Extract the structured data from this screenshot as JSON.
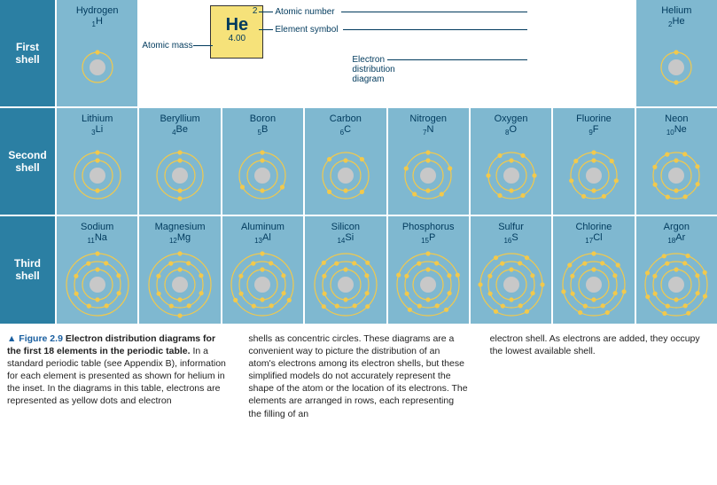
{
  "colors": {
    "rowlabel_bg": "#2b7fa3",
    "cell_bg": "#7fb8d0",
    "text": "#003a5d",
    "electron": "#f2c94c",
    "shell": "#f2c94c",
    "nucleus": "#c8c8c8",
    "legend_tile_bg": "#f6e27a"
  },
  "shell_labels": [
    "First shell",
    "Second shell",
    "Third shell"
  ],
  "legend": {
    "atomic_number": "Atomic number",
    "atomic_mass": "Atomic mass",
    "element_symbol": "Element symbol",
    "electron_diagram": "Electron distribution diagram",
    "he_num": "2",
    "he_sym": "He",
    "he_mass": "4.00"
  },
  "elements": [
    {
      "row": 1,
      "col": 1,
      "z": 1,
      "sym": "H",
      "name": "Hydrogen",
      "shells": [
        1
      ]
    },
    {
      "row": 1,
      "col": 8,
      "z": 2,
      "sym": "He",
      "name": "Helium",
      "shells": [
        2
      ]
    },
    {
      "row": 2,
      "col": 1,
      "z": 3,
      "sym": "Li",
      "name": "Lithium",
      "shells": [
        2,
        1
      ]
    },
    {
      "row": 2,
      "col": 2,
      "z": 4,
      "sym": "Be",
      "name": "Beryllium",
      "shells": [
        2,
        2
      ]
    },
    {
      "row": 2,
      "col": 3,
      "z": 5,
      "sym": "B",
      "name": "Boron",
      "shells": [
        2,
        3
      ]
    },
    {
      "row": 2,
      "col": 4,
      "z": 6,
      "sym": "C",
      "name": "Carbon",
      "shells": [
        2,
        4
      ]
    },
    {
      "row": 2,
      "col": 5,
      "z": 7,
      "sym": "N",
      "name": "Nitrogen",
      "shells": [
        2,
        5
      ]
    },
    {
      "row": 2,
      "col": 6,
      "z": 8,
      "sym": "O",
      "name": "Oxygen",
      "shells": [
        2,
        6
      ]
    },
    {
      "row": 2,
      "col": 7,
      "z": 9,
      "sym": "F",
      "name": "Fluorine",
      "shells": [
        2,
        7
      ]
    },
    {
      "row": 2,
      "col": 8,
      "z": 10,
      "sym": "Ne",
      "name": "Neon",
      "shells": [
        2,
        8
      ]
    },
    {
      "row": 3,
      "col": 1,
      "z": 11,
      "sym": "Na",
      "name": "Sodium",
      "shells": [
        2,
        8,
        1
      ]
    },
    {
      "row": 3,
      "col": 2,
      "z": 12,
      "sym": "Mg",
      "name": "Magnesium",
      "shells": [
        2,
        8,
        2
      ]
    },
    {
      "row": 3,
      "col": 3,
      "z": 13,
      "sym": "Al",
      "name": "Aluminum",
      "shells": [
        2,
        8,
        3
      ]
    },
    {
      "row": 3,
      "col": 4,
      "z": 14,
      "sym": "Si",
      "name": "Silicon",
      "shells": [
        2,
        8,
        4
      ]
    },
    {
      "row": 3,
      "col": 5,
      "z": 15,
      "sym": "P",
      "name": "Phosphorus",
      "shells": [
        2,
        8,
        5
      ]
    },
    {
      "row": 3,
      "col": 6,
      "z": 16,
      "sym": "S",
      "name": "Sulfur",
      "shells": [
        2,
        8,
        6
      ]
    },
    {
      "row": 3,
      "col": 7,
      "z": 17,
      "sym": "Cl",
      "name": "Chlorine",
      "shells": [
        2,
        8,
        7
      ]
    },
    {
      "row": 3,
      "col": 8,
      "z": 18,
      "sym": "Ar",
      "name": "Argon",
      "shells": [
        2,
        8,
        8
      ]
    }
  ],
  "diagram_style": {
    "nucleus_radius": 9,
    "shell_radii": [
      17,
      26,
      35
    ],
    "electron_radius": 2.6,
    "shell_stroke_width": 1.2
  },
  "caption": {
    "fig_marker": "▲ Figure 2.9",
    "title": "Electron distribution diagrams for the first 18 elements in the periodic table.",
    "col1": "In a standard periodic table (see Appendix B), information for each element is presented as shown for helium in the inset. In the diagrams in this table, electrons are represented as yellow dots and electron",
    "col2": "shells as concentric circles. These diagrams are a convenient way to picture the distribution of an atom's electrons among its electron shells, but these simplified models do not accurately represent the shape of the atom or the location of its electrons. The elements are arranged in rows, each representing the filling of an",
    "col3": "electron shell. As electrons are added, they occupy the lowest available shell."
  }
}
